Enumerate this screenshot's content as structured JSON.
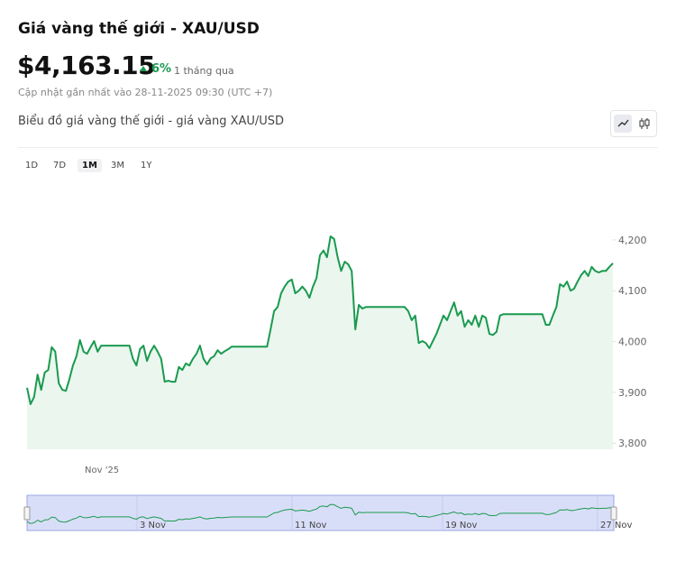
{
  "header": {
    "title": "Giá vàng thế giới - XAU/USD",
    "price": "$4,163.15",
    "change": "6%",
    "change_period": "1 tháng qua",
    "updated": "Cập nhật gần nhất vào 28-11-2025 09:30 (UTC +7)",
    "subtitle": "Biểu đồ giá vàng thế giới - giá vàng XAU/USD"
  },
  "range_buttons": [
    "1D",
    "7D",
    "1M",
    "3M",
    "1Y"
  ],
  "selected_range_index": 2,
  "navigator": {
    "labels": [
      "3 Nov",
      "11 Nov",
      "19 Nov",
      "27 Nov"
    ]
  },
  "chart_data": {
    "type": "area",
    "x_axis_label": "Nov '25",
    "color": "#1a9a4f",
    "fill": "#eaf6ee",
    "ylim": [
      3788,
      4317
    ],
    "yticks": [
      {
        "value": 3800,
        "label": "3,800"
      },
      {
        "value": 3900,
        "label": "3,900"
      },
      {
        "value": 4000,
        "label": "4,000"
      },
      {
        "value": 4100,
        "label": "4,100"
      },
      {
        "value": 4200,
        "label": "4,200"
      }
    ],
    "values": [
      3909,
      3877,
      3891,
      3935,
      3905,
      3939,
      3944,
      3989,
      3980,
      3918,
      3905,
      3903,
      3926,
      3953,
      3971,
      4003,
      3980,
      3976,
      3989,
      4001,
      3980,
      3992,
      3992,
      3992,
      3992,
      3992,
      3992,
      3992,
      3992,
      3992,
      3966,
      3953,
      3985,
      3992,
      3962,
      3980,
      3992,
      3980,
      3966,
      3921,
      3923,
      3921,
      3921,
      3950,
      3944,
      3957,
      3953,
      3966,
      3976,
      3992,
      3966,
      3955,
      3967,
      3971,
      3983,
      3976,
      3981,
      3985,
      3990,
      3990,
      3990,
      3990,
      3990,
      3990,
      3990,
      3990,
      3990,
      3990,
      3990,
      4024,
      4060,
      4068,
      4095,
      4108,
      4118,
      4122,
      4095,
      4100,
      4108,
      4100,
      4086,
      4108,
      4125,
      4170,
      4179,
      4166,
      4207,
      4202,
      4166,
      4139,
      4157,
      4152,
      4139,
      4024,
      4072,
      4065,
      4068,
      4068,
      4068,
      4068,
      4068,
      4068,
      4068,
      4068,
      4068,
      4068,
      4068,
      4068,
      4060,
      4042,
      4051,
      3997,
      4001,
      3997,
      3987,
      4001,
      4015,
      4033,
      4051,
      4042,
      4060,
      4077,
      4051,
      4060,
      4029,
      4042,
      4033,
      4051,
      4029,
      4051,
      4047,
      4015,
      4013,
      4019,
      4051,
      4054,
      4054,
      4054,
      4054,
      4054,
      4054,
      4054,
      4054,
      4054,
      4054,
      4054,
      4054,
      4033,
      4033,
      4051,
      4068,
      4113,
      4108,
      4118,
      4100,
      4104,
      4118,
      4131,
      4139,
      4129,
      4147,
      4139,
      4136,
      4139,
      4139,
      4147,
      4154
    ]
  }
}
